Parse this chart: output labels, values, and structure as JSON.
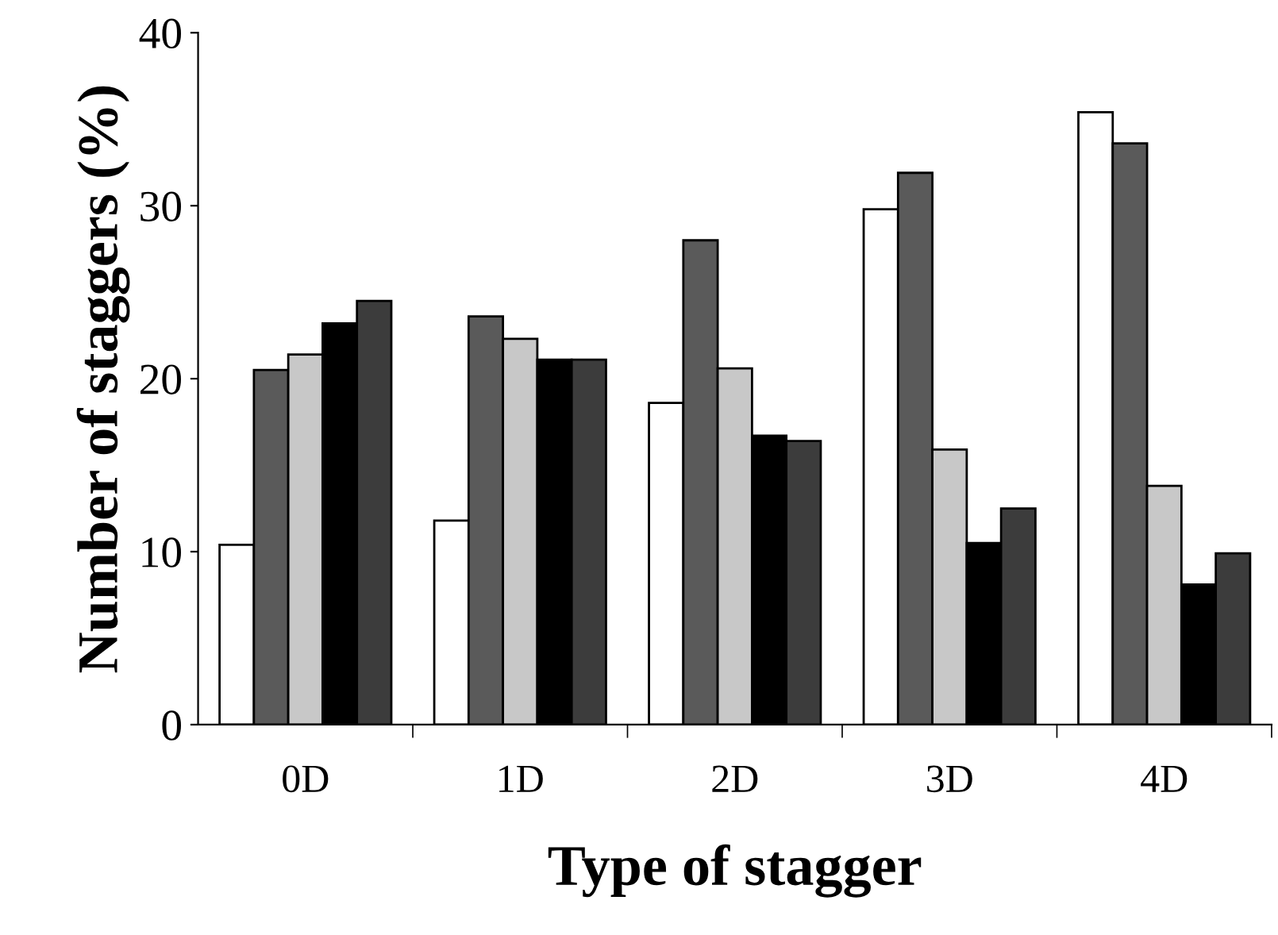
{
  "chart_data": {
    "type": "bar",
    "xlabel": "Type of stagger",
    "ylabel": "Number of staggers (%)",
    "categories": [
      "0D",
      "1D",
      "2D",
      "3D",
      "4D"
    ],
    "series": [
      {
        "color": "#ffffff",
        "values": [
          10.4,
          11.8,
          18.6,
          29.8,
          35.4
        ]
      },
      {
        "color": "#5a5a5a",
        "values": [
          20.5,
          23.6,
          28.0,
          31.9,
          33.6
        ]
      },
      {
        "color": "#c8c8c8",
        "values": [
          21.4,
          22.3,
          20.6,
          15.9,
          13.8
        ]
      },
      {
        "color": "#000000",
        "values": [
          23.2,
          21.1,
          16.7,
          10.5,
          8.1
        ]
      },
      {
        "color": "#3c3c3c",
        "values": [
          24.5,
          21.1,
          16.4,
          12.5,
          9.9
        ]
      }
    ],
    "ylim": [
      0,
      40
    ],
    "yticks": [
      0,
      10,
      20,
      30,
      40
    ],
    "grid": false,
    "legend": false
  }
}
